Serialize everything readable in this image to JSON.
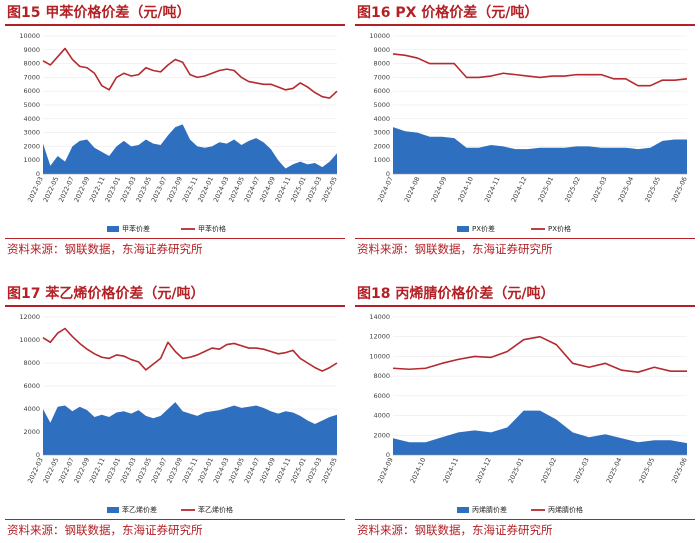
{
  "colors": {
    "accent": "#b32025",
    "spread": "#2e6fbf",
    "price": "#b52a2f"
  },
  "panels": [
    {
      "title": "图15 甲苯价格价差（元/吨）",
      "source": "资料来源：钢联数据，东海证券研究所"
    },
    {
      "title": "图16 PX 价格价差（元/吨）",
      "source": "资料来源：钢联数据，东海证券研究所"
    },
    {
      "title": "图17 苯乙烯价格价差（元/吨）",
      "source": "资料来源：钢联数据，东海证券研究所"
    },
    {
      "title": "图18 丙烯腈价格价差（元/吨）",
      "source": "资料来源：钢联数据，东海证券研究所"
    }
  ],
  "chart_data": [
    {
      "type": "area",
      "title": "图15 甲苯价格价差（元/吨）",
      "ylim": [
        0,
        10000
      ],
      "yticks": [
        0,
        1000,
        2000,
        3000,
        4000,
        5000,
        6000,
        7000,
        8000,
        9000,
        10000
      ],
      "xlim": [
        0,
        40
      ],
      "x": [
        0,
        1,
        2,
        3,
        4,
        5,
        6,
        7,
        8,
        9,
        10,
        11,
        12,
        13,
        14,
        15,
        16,
        17,
        18,
        19,
        20,
        21,
        22,
        23,
        24,
        25,
        26,
        27,
        28,
        29,
        30,
        31,
        32,
        33,
        34,
        35,
        36,
        37,
        38,
        39,
        40
      ],
      "xticklabels": [
        "2022-03",
        "2022-05",
        "2022-07",
        "2022-09",
        "2022-11",
        "2023-01",
        "2023-03",
        "2023-05",
        "2023-07",
        "2023-09",
        "2023-11",
        "2024-01",
        "2024-03",
        "2024-05",
        "2024-07",
        "2024-09",
        "2024-11",
        "2025-01",
        "2025-03",
        "2025-05"
      ],
      "legend": [
        "甲苯价差",
        "甲苯价格"
      ],
      "series": [
        {
          "name": "甲苯价差",
          "kind": "area",
          "values": [
            2200,
            600,
            1300,
            900,
            2000,
            2400,
            2500,
            1900,
            1600,
            1300,
            2000,
            2400,
            2000,
            2100,
            2500,
            2200,
            2100,
            2800,
            3400,
            3600,
            2500,
            2000,
            1900,
            2000,
            2300,
            2200,
            2500,
            2100,
            2400,
            2600,
            2300,
            1800,
            1000,
            400,
            700,
            900,
            700,
            800,
            500,
            900,
            1500
          ]
        },
        {
          "name": "甲苯价格",
          "kind": "line",
          "values": [
            8200,
            7900,
            8500,
            9100,
            8300,
            7800,
            7700,
            7300,
            6400,
            6100,
            7000,
            7300,
            7100,
            7200,
            7700,
            7500,
            7400,
            7900,
            8300,
            8100,
            7200,
            7000,
            7100,
            7300,
            7500,
            7600,
            7500,
            7000,
            6700,
            6600,
            6500,
            6500,
            6300,
            6100,
            6200,
            6600,
            6300,
            5900,
            5600,
            5500,
            6000
          ]
        }
      ]
    },
    {
      "type": "area",
      "title": "图16 PX 价格价差（元/吨）",
      "ylim": [
        0,
        10000
      ],
      "yticks": [
        0,
        1000,
        2000,
        3000,
        4000,
        5000,
        6000,
        7000,
        8000,
        9000,
        10000
      ],
      "xlim": [
        0,
        12
      ],
      "x": [
        0,
        0.5,
        1,
        1.5,
        2,
        2.5,
        3,
        3.5,
        4,
        4.5,
        5,
        5.5,
        6,
        6.5,
        7,
        7.5,
        8,
        8.5,
        9,
        9.5,
        10,
        10.5,
        11,
        11.5,
        12
      ],
      "xticklabels": [
        "2024-07",
        "2024-08",
        "2024-09",
        "2024-10",
        "2024-11",
        "2024-12",
        "2025-01",
        "2025-02",
        "2025-03",
        "2025-04",
        "2025-05",
        "2025-06"
      ],
      "legend": [
        "PX价差",
        "PX价格"
      ],
      "series": [
        {
          "name": "PX价差",
          "kind": "area",
          "values": [
            3400,
            3100,
            3000,
            2700,
            2700,
            2600,
            1900,
            1900,
            2100,
            2000,
            1800,
            1800,
            1900,
            1900,
            1900,
            2000,
            2000,
            1900,
            1900,
            1900,
            1800,
            1900,
            2400,
            2500,
            2500
          ]
        },
        {
          "name": "PX价格",
          "kind": "line",
          "values": [
            8700,
            8600,
            8400,
            8000,
            8000,
            8000,
            7000,
            7000,
            7100,
            7300,
            7200,
            7100,
            7000,
            7100,
            7100,
            7200,
            7200,
            7200,
            6900,
            6900,
            6400,
            6400,
            6800,
            6800,
            6900
          ]
        }
      ]
    },
    {
      "type": "area",
      "title": "图17 苯乙烯价格价差（元/吨）",
      "ylim": [
        0,
        12000
      ],
      "yticks": [
        0,
        2000,
        4000,
        6000,
        8000,
        10000,
        12000
      ],
      "xlim": [
        0,
        40
      ],
      "x": [
        0,
        1,
        2,
        3,
        4,
        5,
        6,
        7,
        8,
        9,
        10,
        11,
        12,
        13,
        14,
        15,
        16,
        17,
        18,
        19,
        20,
        21,
        22,
        23,
        24,
        25,
        26,
        27,
        28,
        29,
        30,
        31,
        32,
        33,
        34,
        35,
        36,
        37,
        38,
        39,
        40
      ],
      "xticklabels": [
        "2022-03",
        "2022-05",
        "2022-07",
        "2022-09",
        "2022-11",
        "2023-01",
        "2023-03",
        "2023-05",
        "2023-07",
        "2023-09",
        "2023-11",
        "2024-01",
        "2024-03",
        "2024-05",
        "2024-07",
        "2024-09",
        "2024-11",
        "2025-01",
        "2025-03",
        "2025-05"
      ],
      "legend": [
        "苯乙烯价差",
        "苯乙烯价格"
      ],
      "series": [
        {
          "name": "苯乙烯价差",
          "kind": "area",
          "values": [
            4000,
            2800,
            4200,
            4300,
            3800,
            4200,
            3900,
            3300,
            3500,
            3300,
            3700,
            3800,
            3600,
            3900,
            3400,
            3200,
            3400,
            4000,
            4600,
            3800,
            3600,
            3400,
            3700,
            3800,
            3900,
            4100,
            4300,
            4100,
            4200,
            4300,
            4100,
            3800,
            3600,
            3800,
            3700,
            3400,
            3000,
            2700,
            3000,
            3300,
            3500
          ]
        },
        {
          "name": "苯乙烯价格",
          "kind": "line",
          "values": [
            10200,
            9800,
            10600,
            11000,
            10300,
            9700,
            9200,
            8800,
            8500,
            8400,
            8700,
            8600,
            8300,
            8100,
            7400,
            7900,
            8400,
            9800,
            9000,
            8400,
            8500,
            8700,
            9000,
            9300,
            9200,
            9600,
            9700,
            9500,
            9300,
            9300,
            9200,
            9000,
            8800,
            8900,
            9100,
            8400,
            8000,
            7600,
            7300,
            7600,
            8000
          ]
        }
      ]
    },
    {
      "type": "area",
      "title": "图18 丙烯腈价格价差（元/吨）",
      "ylim": [
        0,
        14000
      ],
      "yticks": [
        0,
        2000,
        4000,
        6000,
        8000,
        10000,
        12000,
        14000
      ],
      "xlim": [
        0,
        18
      ],
      "x": [
        0,
        1,
        2,
        3,
        4,
        5,
        6,
        7,
        8,
        9,
        10,
        11,
        12,
        13,
        14,
        15,
        16,
        17,
        18
      ],
      "xticklabels": [
        "2024-09",
        "2024-10",
        "2024-11",
        "2024-12",
        "2025-01",
        "2025-02",
        "2025-03",
        "2025-04",
        "2025-05",
        "2025-06"
      ],
      "legend": [
        "丙烯腈价差",
        "丙烯腈价格"
      ],
      "series": [
        {
          "name": "丙烯腈价差",
          "kind": "area",
          "values": [
            1700,
            1300,
            1300,
            1800,
            2300,
            2500,
            2300,
            2800,
            4500,
            4500,
            3600,
            2300,
            1800,
            2100,
            1700,
            1300,
            1500,
            1500,
            1200
          ]
        },
        {
          "name": "丙烯腈价格",
          "kind": "line",
          "values": [
            8800,
            8700,
            8800,
            9300,
            9700,
            10000,
            9900,
            10500,
            11700,
            12000,
            11200,
            9300,
            8900,
            9300,
            8600,
            8400,
            8900,
            8500,
            8500
          ]
        }
      ]
    }
  ]
}
